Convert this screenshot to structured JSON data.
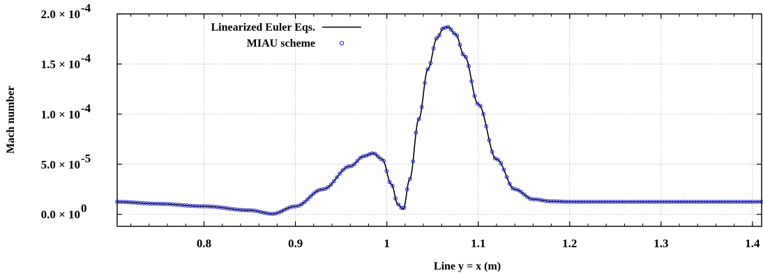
{
  "chart_data": {
    "type": "line",
    "title": "",
    "xlabel": "Line y = x (m)",
    "ylabel": "Mach number",
    "xlim": [
      0.705,
      1.41
    ],
    "ylim": [
      -1.2e-05,
      0.0002
    ],
    "grid": true,
    "legend_position": "top-left",
    "x_ticks": [
      {
        "value": 0.8,
        "label": "0.8"
      },
      {
        "value": 0.9,
        "label": "0.9"
      },
      {
        "value": 1.0,
        "label": "1"
      },
      {
        "value": 1.1,
        "label": "1.1"
      },
      {
        "value": 1.2,
        "label": "1.2"
      },
      {
        "value": 1.3,
        "label": "1.3"
      },
      {
        "value": 1.4,
        "label": "1.4"
      }
    ],
    "y_ticks": [
      {
        "value": 0,
        "mantissa": "0.0",
        "exponent": "0"
      },
      {
        "value": 5e-05,
        "mantissa": "5.0",
        "exponent": "-5"
      },
      {
        "value": 0.0001,
        "mantissa": "1.0",
        "exponent": "-4"
      },
      {
        "value": 0.00015,
        "mantissa": "1.5",
        "exponent": "-4"
      },
      {
        "value": 0.0002,
        "mantissa": "2.0",
        "exponent": "-4"
      }
    ],
    "series": [
      {
        "name": "Linearized Euler Eqs.",
        "style": "line",
        "color": "#000000",
        "x": [
          0.705,
          0.75,
          0.8,
          0.85,
          0.875,
          0.9,
          0.93,
          0.96,
          0.975,
          0.985,
          0.995,
          1.005,
          1.012,
          1.018,
          1.025,
          1.035,
          1.045,
          1.055,
          1.062,
          1.067,
          1.075,
          1.085,
          1.1,
          1.12,
          1.14,
          1.16,
          1.18,
          1.2,
          1.25,
          1.3,
          1.35,
          1.41
        ],
        "y": [
          1.25e-05,
          1.05e-05,
          8e-06,
          4e-06,
          5e-07,
          8e-06,
          2.5e-05,
          4.8e-05,
          5.8e-05,
          6.1e-05,
          5.5e-05,
          3e-05,
          1e-05,
          5e-06,
          3.5e-05,
          9.5e-05,
          0.000145,
          0.000176,
          0.000186,
          0.000187,
          0.00018,
          0.000158,
          0.00011,
          5.5e-05,
          2.5e-05,
          1.5e-05,
          1.3e-05,
          1.25e-05,
          1.25e-05,
          1.25e-05,
          1.25e-05,
          1.25e-05
        ]
      },
      {
        "name": "MIAU scheme",
        "style": "markers",
        "color": "#1f1fd6",
        "marker": "open-circle",
        "sampled_from": "Linearized Euler Eqs.",
        "count": 221
      }
    ]
  }
}
